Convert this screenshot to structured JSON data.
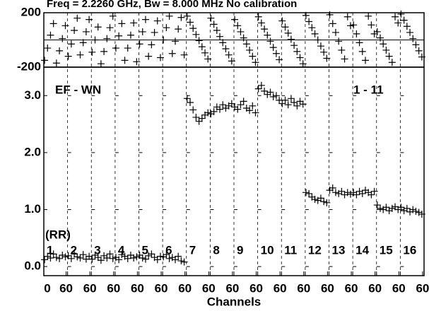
{
  "chart_data": [
    {
      "type": "scatter",
      "title": "Freq = 2.2260 GHz, Bw = 8.000 MHz   No calibration",
      "color": "#000000",
      "ylim": [
        -200,
        200
      ],
      "yticks": [
        200,
        -200
      ],
      "series": [
        {
          "values": [
            -150,
            -60,
            35,
            120,
            -170,
            -80,
            10,
            105
          ]
        },
        {
          "values": [
            -120,
            -30,
            70,
            160,
            -110,
            -20,
            60,
            150
          ]
        },
        {
          "values": [
            -90,
            0,
            95,
            -175,
            -85,
            10,
            90,
            175
          ]
        },
        {
          "values": [
            -60,
            30,
            120,
            -150,
            -60,
            35,
            125,
            -160
          ]
        },
        {
          "values": [
            -30,
            60,
            150,
            -120,
            -35,
            55,
            140,
            -130
          ]
        },
        {
          "values": [
            0,
            90,
            175,
            -100,
            -10,
            80,
            165,
            -110
          ]
        },
        {
          "values": [
            175,
            130,
            85,
            40,
            -5,
            -50,
            -95,
            -140
          ]
        },
        {
          "values": [
            160,
            115,
            70,
            25,
            -20,
            -65,
            -110,
            -155
          ]
        },
        {
          "values": [
            150,
            105,
            60,
            15,
            -30,
            -75,
            -120,
            -165
          ]
        },
        {
          "values": [
            170,
            125,
            80,
            35,
            -10,
            -55,
            -100,
            -145
          ]
        },
        {
          "values": [
            140,
            95,
            50,
            5,
            -40,
            -85,
            -130,
            -175
          ]
        },
        {
          "values": [
            180,
            135,
            90,
            45,
            0,
            -45,
            -90,
            -135
          ]
        },
        {
          "values": [
            185,
            120,
            55,
            -10,
            -75,
            -140,
            170,
            105
          ]
        },
        {
          "values": [
            110,
            45,
            -20,
            -85,
            -150,
            175,
            110,
            45
          ]
        },
        {
          "values": [
            60,
            15,
            -30,
            -75,
            -120,
            -165,
            170,
            125
          ]
        },
        {
          "values": [
            190,
            145,
            100,
            55,
            10,
            -35,
            -80,
            -125
          ]
        }
      ]
    },
    {
      "type": "scatter",
      "color": "#000000",
      "xlabel": "Channels",
      "annotations": [
        "EF - WN",
        "1 - 11",
        "(RR)"
      ],
      "xlim": [
        0,
        64
      ],
      "xticks": [
        0,
        60
      ],
      "x": [
        2,
        10,
        18,
        26,
        34,
        42,
        50,
        58
      ],
      "ylim": [
        -0.16,
        3.5
      ],
      "yticks": [
        {
          "value": 0,
          "label": "0.0"
        },
        {
          "value": 1,
          "label": "1.0"
        },
        {
          "value": 2,
          "label": "2.0"
        },
        {
          "value": 3,
          "label": "3.0"
        }
      ],
      "series": [
        {
          "name": "1",
          "values": [
            0.12,
            0.18,
            0.15,
            0.22,
            0.16,
            0.14,
            0.2,
            0.17
          ]
        },
        {
          "name": "2",
          "values": [
            0.19,
            0.14,
            0.22,
            0.17,
            0.15,
            0.21,
            0.13,
            0.18
          ]
        },
        {
          "name": "3",
          "values": [
            0.13,
            0.2,
            0.16,
            0.11,
            0.19,
            0.15,
            0.22,
            0.14
          ]
        },
        {
          "name": "4",
          "values": [
            0.16,
            0.12,
            0.21,
            0.18,
            0.14,
            0.2,
            0.15,
            0.17
          ]
        },
        {
          "name": "5",
          "values": [
            0.2,
            0.15,
            0.13,
            0.19,
            0.22,
            0.16,
            0.12,
            0.18
          ]
        },
        {
          "name": "6",
          "values": [
            0.17,
            0.21,
            0.14,
            0.16,
            0.12,
            0.18,
            0.1,
            0.08
          ]
        },
        {
          "name": "7",
          "values": [
            2.95,
            2.88,
            2.75,
            2.62,
            2.55,
            2.6,
            2.66,
            2.7
          ]
        },
        {
          "name": "8",
          "values": [
            2.68,
            2.72,
            2.8,
            2.76,
            2.84,
            2.78,
            2.82,
            2.86
          ]
        },
        {
          "name": "9",
          "values": [
            2.8,
            2.76,
            2.84,
            2.9,
            2.78,
            2.74,
            2.82,
            2.7
          ]
        },
        {
          "name": "10",
          "values": [
            3.12,
            3.18,
            3.08,
            3.02,
            3.06,
            2.98,
            3.0,
            2.92
          ]
        },
        {
          "name": "11",
          "values": [
            2.86,
            2.92,
            2.84,
            2.95,
            2.88,
            2.82,
            2.9,
            2.85
          ]
        },
        {
          "name": "12",
          "values": [
            1.3,
            1.28,
            1.22,
            1.18,
            1.16,
            1.2,
            1.14,
            1.12
          ]
        },
        {
          "name": "13",
          "values": [
            1.34,
            1.38,
            1.3,
            1.28,
            1.32,
            1.26,
            1.3,
            1.27
          ]
        },
        {
          "name": "14",
          "values": [
            1.3,
            1.26,
            1.32,
            1.28,
            1.34,
            1.3,
            1.26,
            1.32
          ]
        },
        {
          "name": "15",
          "values": [
            1.08,
            1.02,
            1.0,
            1.04,
            0.98,
            1.02,
            1.05,
            1.0
          ]
        },
        {
          "name": "16",
          "values": [
            1.04,
            0.98,
            1.02,
            0.96,
            1.0,
            0.97,
            0.95,
            0.92
          ]
        }
      ]
    }
  ]
}
